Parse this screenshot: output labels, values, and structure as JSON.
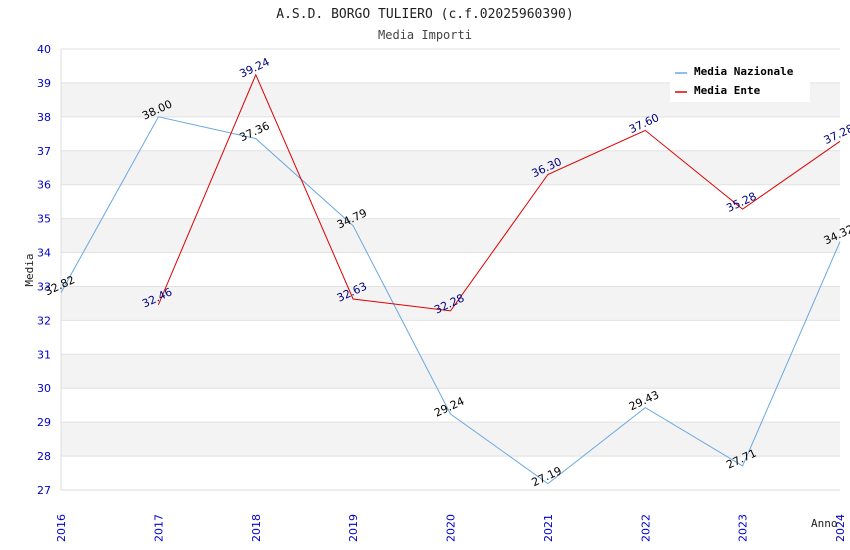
{
  "chart_data": {
    "type": "line",
    "title": "A.S.D. BORGO TULIERO (c.f.02025960390)",
    "subtitle": "Media Importi",
    "xlabel": "Anno",
    "ylabel": "Media",
    "x": [
      "2016",
      "2017",
      "2018",
      "2019",
      "2020",
      "2021",
      "2022",
      "2023",
      "2024"
    ],
    "ylim": [
      27,
      40
    ],
    "yticks": [
      "27",
      "28",
      "29",
      "30",
      "31",
      "32",
      "33",
      "34",
      "35",
      "36",
      "37",
      "38",
      "39",
      "40"
    ],
    "grid": "horizontal alternating bands",
    "legend_position": "top-right",
    "series": [
      {
        "name": "Media Nazionale",
        "color": "#6aa8e0",
        "label_color": "#000000",
        "values": [
          32.82,
          38.0,
          37.36,
          34.79,
          29.24,
          27.19,
          29.43,
          27.71,
          34.32
        ],
        "labels": [
          "32.82",
          "38.00",
          "37.36",
          "34.79",
          "29.24",
          "27.19",
          "29.43",
          "27.71",
          "34.32"
        ]
      },
      {
        "name": "Media Ente",
        "color": "#dd0000",
        "label_color": "#000080",
        "values": [
          null,
          32.46,
          39.24,
          32.63,
          32.28,
          36.3,
          37.6,
          35.28,
          37.28
        ],
        "labels": [
          "",
          "32.46",
          "39.24",
          "32.63",
          "32.28",
          "36.30",
          "37.60",
          "35.28",
          "37.28"
        ]
      }
    ]
  }
}
